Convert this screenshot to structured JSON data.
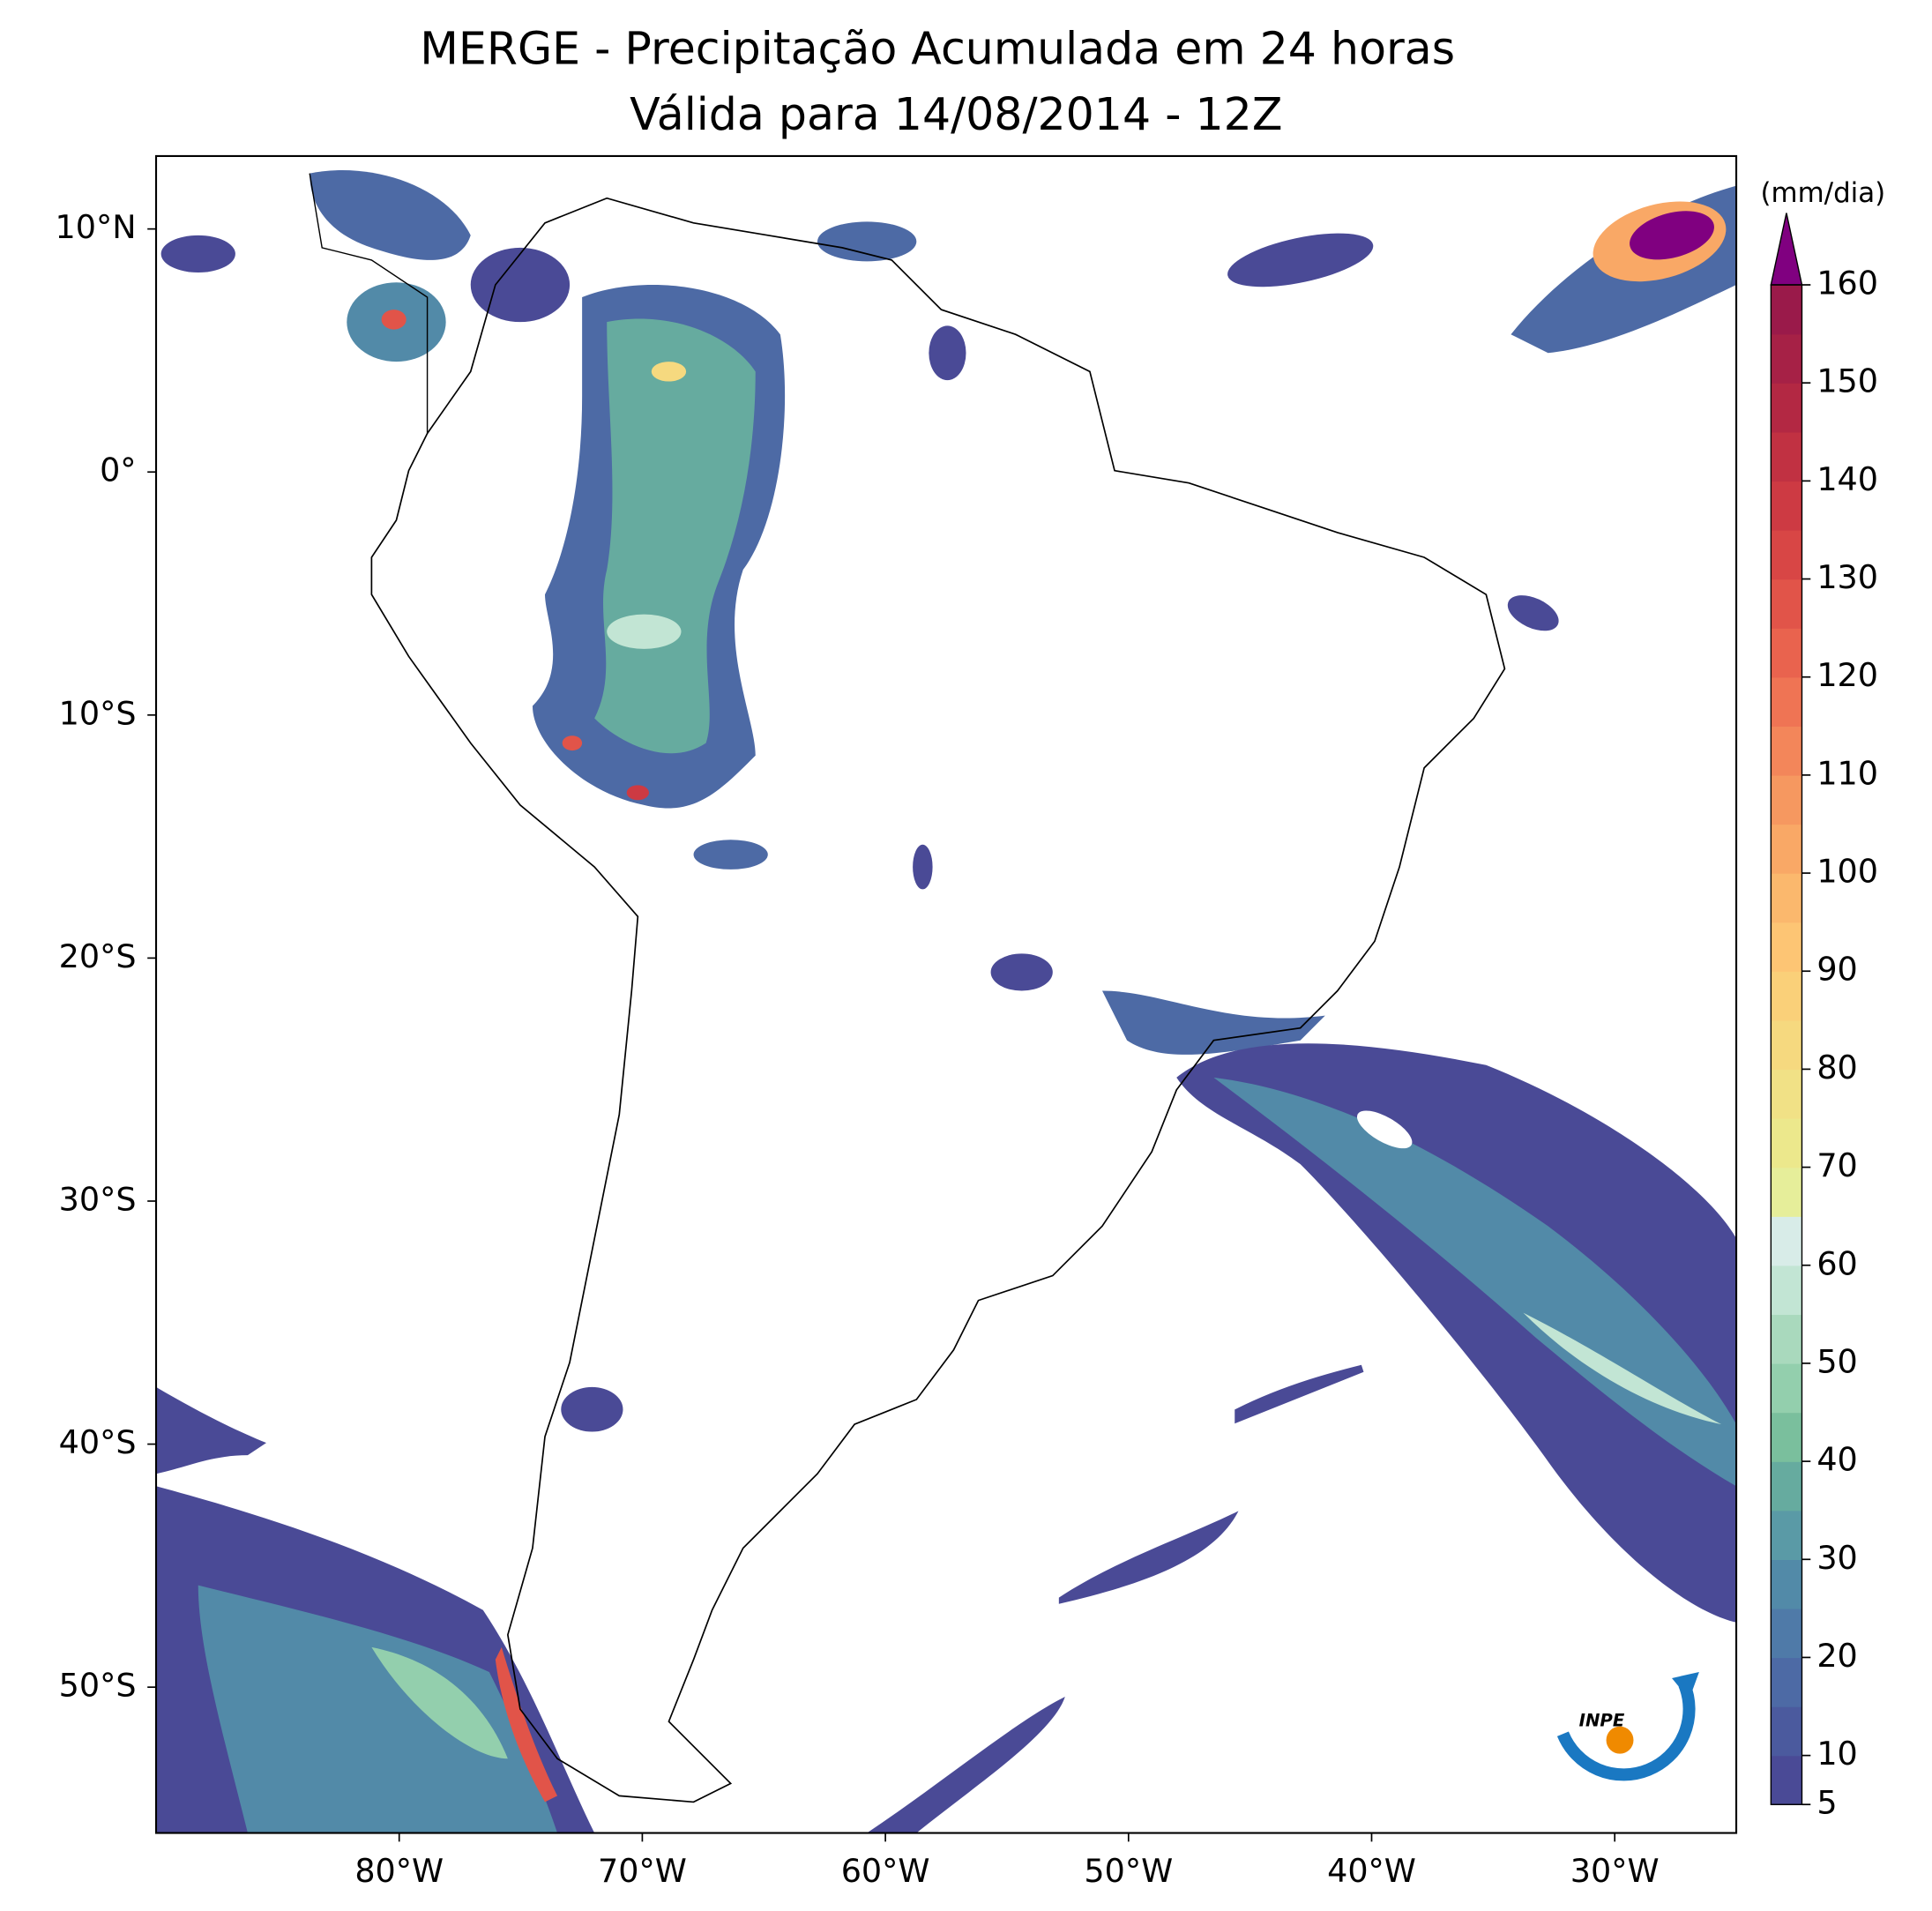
{
  "chart_data": {
    "type": "map",
    "title": "MERGE - Precipitação Acumulada em 24 horas",
    "subtitle": "Válida para 14/08/2014 - 12Z",
    "xlim": [
      -90,
      -25
    ],
    "ylim": [
      -56,
      13
    ],
    "xticks": [
      {
        "value": -80,
        "label": "80°W"
      },
      {
        "value": -70,
        "label": "70°W"
      },
      {
        "value": -60,
        "label": "60°W"
      },
      {
        "value": -50,
        "label": "50°W"
      },
      {
        "value": -40,
        "label": "40°W"
      },
      {
        "value": -30,
        "label": "30°W"
      }
    ],
    "yticks": [
      {
        "value": 10,
        "label": "10°N"
      },
      {
        "value": 0,
        "label": "0°"
      },
      {
        "value": -10,
        "label": "10°S"
      },
      {
        "value": -20,
        "label": "20°S"
      },
      {
        "value": -30,
        "label": "30°S"
      },
      {
        "value": -40,
        "label": "40°S"
      },
      {
        "value": -50,
        "label": "50°S"
      }
    ],
    "colorbar": {
      "label": "(mm/dia)",
      "clim": [
        5,
        160
      ],
      "ticks": [
        5,
        10,
        20,
        30,
        40,
        50,
        60,
        70,
        80,
        90,
        100,
        110,
        120,
        130,
        140,
        150,
        160
      ],
      "colors": [
        "#4a4a96",
        "#4b5a9e",
        "#4d6aa5",
        "#4f7aa8",
        "#528aa8",
        "#5a9aa6",
        "#66ab9f",
        "#7abf9d",
        "#93cfad",
        "#a9d9bd",
        "#c2e5d4",
        "#d8ece8",
        "#e6ee9a",
        "#ece88c",
        "#f1e186",
        "#f6d97f",
        "#fad079",
        "#fdc574",
        "#fbb86d",
        "#f9a866",
        "#f69860",
        "#f3865a",
        "#ef7454",
        "#e9634e",
        "#e15449",
        "#d84645",
        "#cd3a43",
        "#c13142",
        "#b32843",
        "#a62146",
        "#9a1a4a"
      ],
      "extend_color": "#800080"
    }
  },
  "logo": {
    "text": "INPE"
  }
}
